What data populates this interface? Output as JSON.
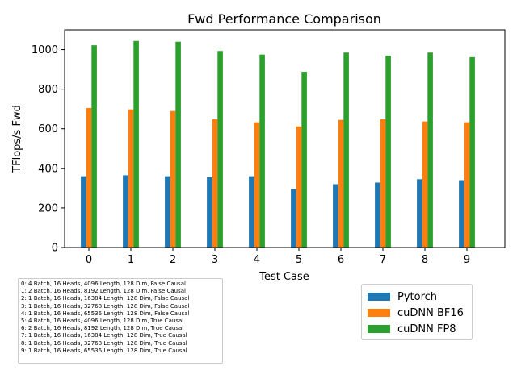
{
  "chart_data": {
    "type": "bar",
    "title": "Fwd Performance Comparison",
    "xlabel": "Test Case",
    "ylabel": "TFlops/s Fwd",
    "categories": [
      "0",
      "1",
      "2",
      "3",
      "4",
      "5",
      "6",
      "7",
      "8",
      "9"
    ],
    "ylim": [
      0,
      1100
    ],
    "yticks": [
      0,
      200,
      400,
      600,
      800,
      1000
    ],
    "grid": false,
    "legend_position": "lower-right, outside plot",
    "series": [
      {
        "name": "Pytorch",
        "color": "#1f77b4",
        "values": [
          360,
          365,
          360,
          355,
          360,
          295,
          320,
          328,
          345,
          340
        ]
      },
      {
        "name": "cuDNN BF16",
        "color": "#ff7f0e",
        "values": [
          705,
          698,
          690,
          648,
          633,
          612,
          645,
          648,
          637,
          633
        ]
      },
      {
        "name": "cuDNN FP8",
        "color": "#2ca02c",
        "values": [
          1022,
          1044,
          1040,
          993,
          975,
          888,
          985,
          970,
          985,
          962
        ]
      }
    ],
    "annotations": [
      "0: 4 Batch, 16 Heads, 4096 Length, 128 Dim, False Causal",
      "1: 2 Batch, 16 Heads, 8192 Length, 128 Dim, False Causal",
      "2: 1 Batch, 16 Heads, 16384 Length, 128 Dim, False Causal",
      "3: 1 Batch, 16 Heads, 32768 Length, 128 Dim, False Causal",
      "4: 1 Batch, 16 Heads, 65536 Length, 128 Dim, False Causal",
      "5: 4 Batch, 16 Heads, 4096 Length, 128 Dim, True Causal",
      "6: 2 Batch, 16 Heads, 8192 Length, 128 Dim, True Causal",
      "7: 1 Batch, 16 Heads, 16384 Length, 128 Dim, True Causal",
      "8: 1 Batch, 16 Heads, 32768 Length, 128 Dim, True Causal",
      "9: 1 Batch, 16 Heads, 65536 Length, 128 Dim, True Causal"
    ]
  }
}
